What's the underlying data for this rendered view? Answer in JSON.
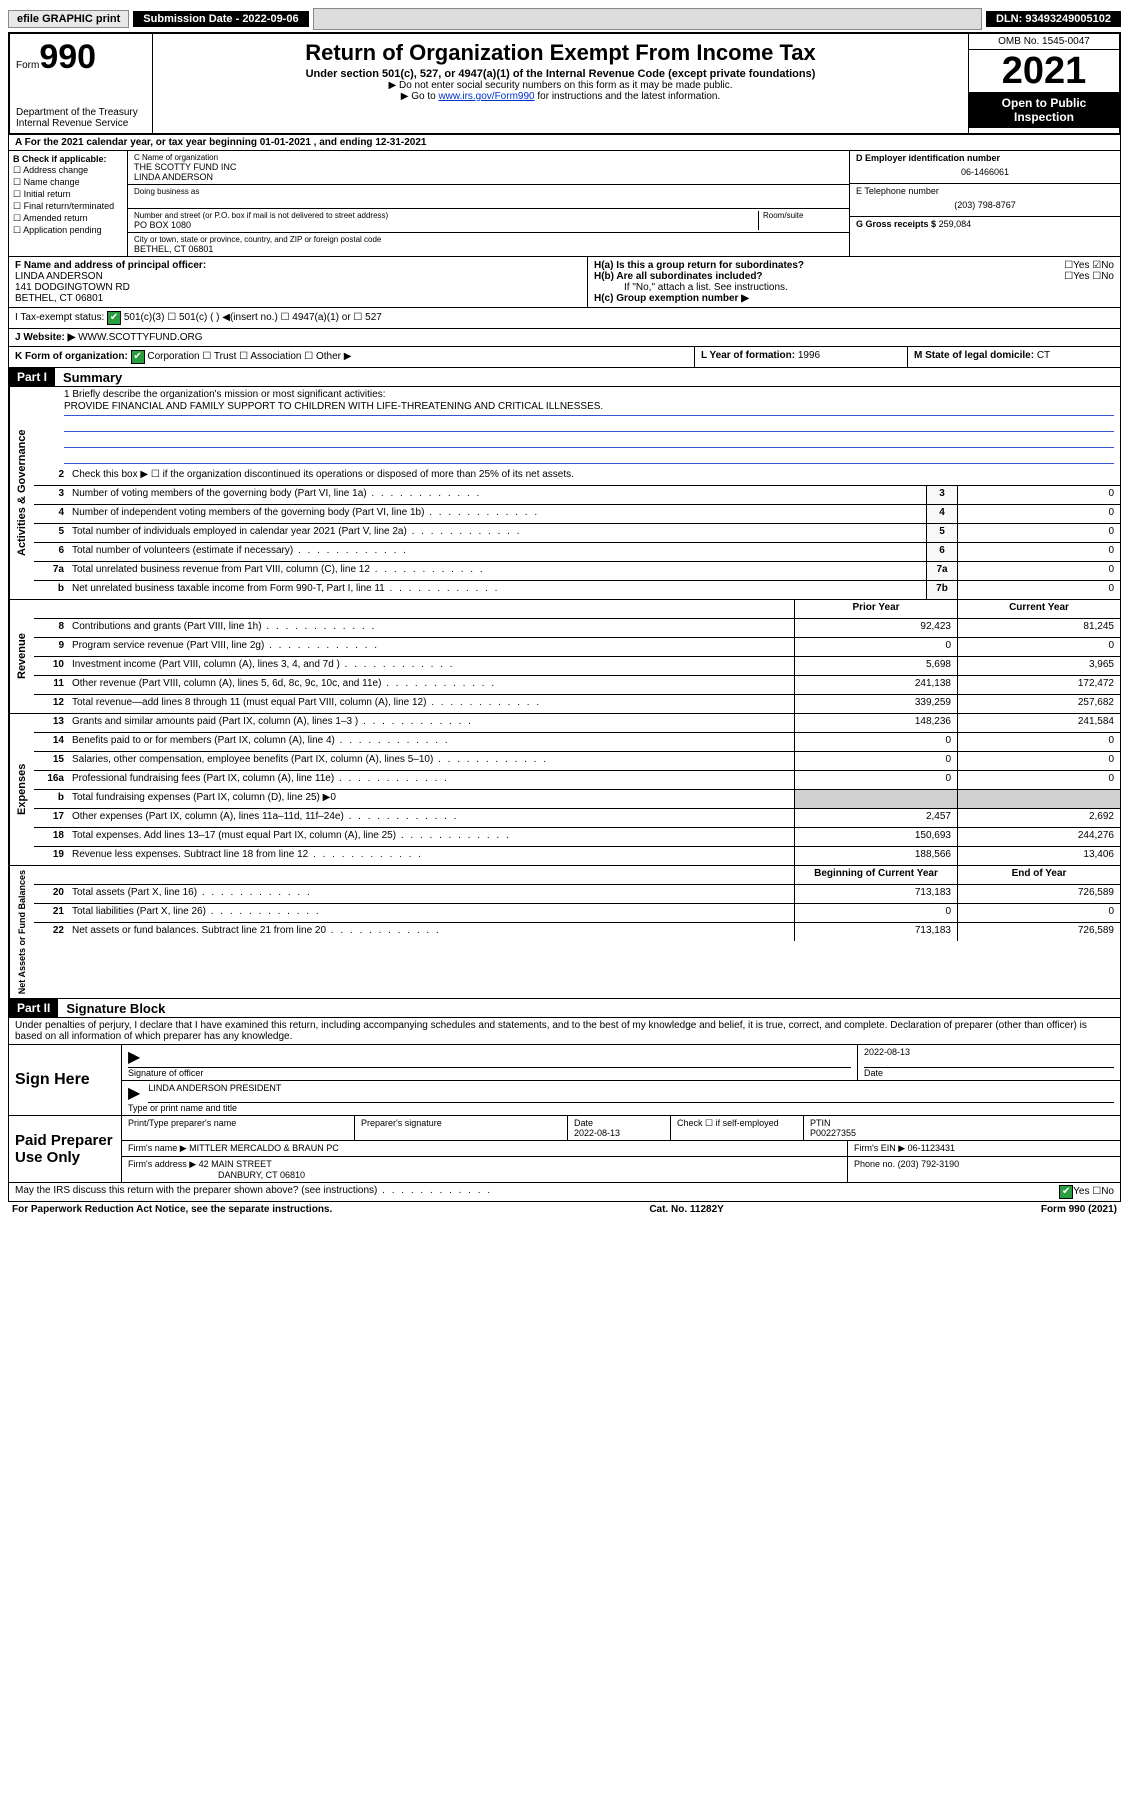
{
  "topbar": {
    "efile": "efile GRAPHIC print",
    "submission": "Submission Date - 2022-09-06",
    "dln": "DLN: 93493249005102"
  },
  "header": {
    "form_label": "Form",
    "form_num": "990",
    "dept": "Department of the Treasury",
    "irs": "Internal Revenue Service",
    "title": "Return of Organization Exempt From Income Tax",
    "sub": "Under section 501(c), 527, or 4947(a)(1) of the Internal Revenue Code (except private foundations)",
    "note1": "▶ Do not enter social security numbers on this form as it may be made public.",
    "note2": "▶ Go to www.irs.gov/Form990 for instructions and the latest information.",
    "omb": "OMB No. 1545-0047",
    "year": "2021",
    "open": "Open to Public Inspection"
  },
  "line_a": "A For the 2021 calendar year, or tax year beginning 01-01-2021 , and ending 12-31-2021",
  "col_b": {
    "title": "B Check if applicable:",
    "opts": [
      "Address change",
      "Name change",
      "Initial return",
      "Final return/terminated",
      "Amended return",
      "Application pending"
    ]
  },
  "col_c": {
    "name_label": "C Name of organization",
    "name1": "THE SCOTTY FUND INC",
    "name2": "LINDA ANDERSON",
    "dba_label": "Doing business as",
    "addr_label": "Number and street (or P.O. box if mail is not delivered to street address)",
    "room_label": "Room/suite",
    "addr": "PO BOX 1080",
    "city_label": "City or town, state or province, country, and ZIP or foreign postal code",
    "city": "BETHEL, CT  06801"
  },
  "col_d": {
    "ein_label": "D Employer identification number",
    "ein": "06-1466061",
    "tel_label": "E Telephone number",
    "tel": "(203) 798-8767",
    "gross_label": "G Gross receipts $",
    "gross": "259,084"
  },
  "row_f": {
    "label": "F Name and address of principal officer:",
    "name": "LINDA ANDERSON",
    "addr1": "141 DODGINGTOWN RD",
    "addr2": "BETHEL, CT  06801"
  },
  "row_h": {
    "ha": "H(a) Is this a group return for subordinates?",
    "ha_ans": "☐Yes ☑No",
    "hb": "H(b) Are all subordinates included?",
    "hb_ans": "☐Yes ☐No",
    "hb_note": "If \"No,\" attach a list. See instructions.",
    "hc": "H(c) Group exemption number ▶"
  },
  "row_i": {
    "label": "I    Tax-exempt status:",
    "opts": "501(c)(3)   ☐ 501(c) (  ) ◀(insert no.)   ☐ 4947(a)(1) or  ☐ 527"
  },
  "row_j": {
    "label": "J    Website: ▶",
    "val": "WWW.SCOTTYFUND.ORG"
  },
  "row_k": {
    "label": "K Form of organization:",
    "opts": "Corporation  ☐ Trust  ☐ Association  ☐ Other ▶"
  },
  "row_l": {
    "label": "L Year of formation:",
    "val": "1996"
  },
  "row_m": {
    "label": "M State of legal domicile:",
    "val": "CT"
  },
  "part1": {
    "tag": "Part I",
    "title": "Summary"
  },
  "mission_label": "1   Briefly describe the organization's mission or most significant activities:",
  "mission": "PROVIDE FINANCIAL AND FAMILY SUPPORT TO CHILDREN WITH LIFE-THREATENING AND CRITICAL ILLNESSES.",
  "gov_rows": [
    {
      "n": "2",
      "d": "Check this box ▶ ☐ if the organization discontinued its operations or disposed of more than 25% of its net assets."
    },
    {
      "n": "3",
      "d": "Number of voting members of the governing body (Part VI, line 1a)",
      "box": "3",
      "v": "0"
    },
    {
      "n": "4",
      "d": "Number of independent voting members of the governing body (Part VI, line 1b)",
      "box": "4",
      "v": "0"
    },
    {
      "n": "5",
      "d": "Total number of individuals employed in calendar year 2021 (Part V, line 2a)",
      "box": "5",
      "v": "0"
    },
    {
      "n": "6",
      "d": "Total number of volunteers (estimate if necessary)",
      "box": "6",
      "v": "0"
    },
    {
      "n": "7a",
      "d": "Total unrelated business revenue from Part VIII, column (C), line 12",
      "box": "7a",
      "v": "0"
    },
    {
      "n": "b",
      "d": "Net unrelated business taxable income from Form 990-T, Part I, line 11",
      "box": "7b",
      "v": "0"
    }
  ],
  "col_heads": {
    "prior": "Prior Year",
    "current": "Current Year"
  },
  "revenue_rows": [
    {
      "n": "8",
      "d": "Contributions and grants (Part VIII, line 1h)",
      "p": "92,423",
      "c": "81,245"
    },
    {
      "n": "9",
      "d": "Program service revenue (Part VIII, line 2g)",
      "p": "0",
      "c": "0"
    },
    {
      "n": "10",
      "d": "Investment income (Part VIII, column (A), lines 3, 4, and 7d )",
      "p": "5,698",
      "c": "3,965"
    },
    {
      "n": "11",
      "d": "Other revenue (Part VIII, column (A), lines 5, 6d, 8c, 9c, 10c, and 11e)",
      "p": "241,138",
      "c": "172,472"
    },
    {
      "n": "12",
      "d": "Total revenue—add lines 8 through 11 (must equal Part VIII, column (A), line 12)",
      "p": "339,259",
      "c": "257,682"
    }
  ],
  "expense_rows": [
    {
      "n": "13",
      "d": "Grants and similar amounts paid (Part IX, column (A), lines 1–3 )",
      "p": "148,236",
      "c": "241,584"
    },
    {
      "n": "14",
      "d": "Benefits paid to or for members (Part IX, column (A), line 4)",
      "p": "0",
      "c": "0"
    },
    {
      "n": "15",
      "d": "Salaries, other compensation, employee benefits (Part IX, column (A), lines 5–10)",
      "p": "0",
      "c": "0"
    },
    {
      "n": "16a",
      "d": "Professional fundraising fees (Part IX, column (A), line 11e)",
      "p": "0",
      "c": "0"
    },
    {
      "n": "b",
      "d": "Total fundraising expenses (Part IX, column (D), line 25) ▶0",
      "shaded": true
    },
    {
      "n": "17",
      "d": "Other expenses (Part IX, column (A), lines 11a–11d, 11f–24e)",
      "p": "2,457",
      "c": "2,692"
    },
    {
      "n": "18",
      "d": "Total expenses. Add lines 13–17 (must equal Part IX, column (A), line 25)",
      "p": "150,693",
      "c": "244,276"
    },
    {
      "n": "19",
      "d": "Revenue less expenses. Subtract line 18 from line 12",
      "p": "188,566",
      "c": "13,406"
    }
  ],
  "net_heads": {
    "begin": "Beginning of Current Year",
    "end": "End of Year"
  },
  "net_rows": [
    {
      "n": "20",
      "d": "Total assets (Part X, line 16)",
      "p": "713,183",
      "c": "726,589"
    },
    {
      "n": "21",
      "d": "Total liabilities (Part X, line 26)",
      "p": "0",
      "c": "0"
    },
    {
      "n": "22",
      "d": "Net assets or fund balances. Subtract line 21 from line 20",
      "p": "713,183",
      "c": "726,589"
    }
  ],
  "part2": {
    "tag": "Part II",
    "title": "Signature Block"
  },
  "penalty": "Under penalties of perjury, I declare that I have examined this return, including accompanying schedules and statements, and to the best of my knowledge and belief, it is true, correct, and complete. Declaration of preparer (other than officer) is based on all information of which preparer has any knowledge.",
  "sign": {
    "label": "Sign Here",
    "sig_label": "Signature of officer",
    "date": "2022-08-13",
    "date_label": "Date",
    "name": "LINDA ANDERSON  PRESIDENT",
    "name_label": "Type or print name and title"
  },
  "preparer": {
    "label": "Paid Preparer Use Only",
    "print_label": "Print/Type preparer's name",
    "sig_label": "Preparer's signature",
    "date_label": "Date",
    "date": "2022-08-13",
    "check_label": "Check ☐ if self-employed",
    "ptin_label": "PTIN",
    "ptin": "P00227355",
    "firm_name_label": "Firm's name    ▶",
    "firm_name": "MITTLER MERCALDO & BRAUN PC",
    "firm_ein_label": "Firm's EIN ▶",
    "firm_ein": "06-1123431",
    "firm_addr_label": "Firm's address ▶",
    "firm_addr1": "42 MAIN STREET",
    "firm_addr2": "DANBURY, CT  06810",
    "phone_label": "Phone no.",
    "phone": "(203) 792-3190"
  },
  "may_irs": "May the IRS discuss this return with the preparer shown above? (see instructions)",
  "may_irs_ans": "☑Yes  ☐No",
  "footer": {
    "left": "For Paperwork Reduction Act Notice, see the separate instructions.",
    "mid": "Cat. No. 11282Y",
    "right": "Form 990 (2021)"
  },
  "side_labels": {
    "gov": "Activities & Governance",
    "rev": "Revenue",
    "exp": "Expenses",
    "net": "Net Assets or Fund Balances"
  }
}
